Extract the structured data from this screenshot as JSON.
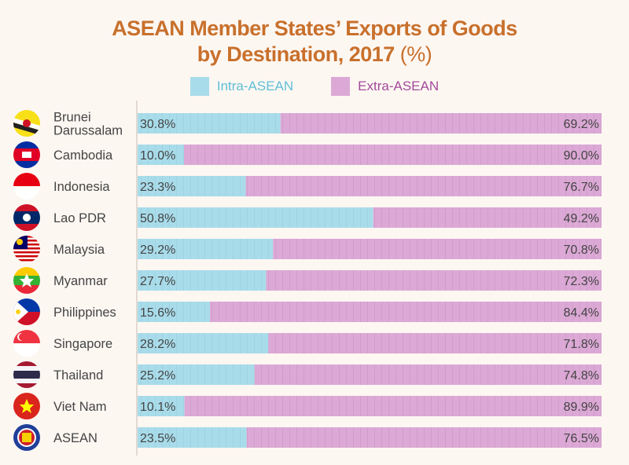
{
  "chart_data": {
    "type": "bar",
    "stacked": true,
    "orientation": "horizontal",
    "title": "ASEAN Member States’ Exports of Goods by Destination, 2017",
    "title_line1": "ASEAN Member States’ Exports of Goods",
    "title_line2": "by Destination, 2017",
    "title_unit": "(%)",
    "xlim": [
      0,
      100
    ],
    "legend_placement": "top",
    "categories": [
      "Brunei Darussalam",
      "Cambodia",
      "Indonesia",
      "Lao PDR",
      "Malaysia",
      "Myanmar",
      "Philippines",
      "Singapore",
      "Thailand",
      "Viet Nam",
      "ASEAN"
    ],
    "category_lines": [
      [
        "Brunei",
        "Darussalam"
      ],
      [
        "Cambodia"
      ],
      [
        "Indonesia"
      ],
      [
        "Lao PDR"
      ],
      [
        "Malaysia"
      ],
      [
        "Myanmar"
      ],
      [
        "Philippines"
      ],
      [
        "Singapore"
      ],
      [
        "Thailand"
      ],
      [
        "Viet Nam"
      ],
      [
        "ASEAN"
      ]
    ],
    "flags": [
      "brunei-flag",
      "cambodia-flag",
      "indonesia-flag",
      "laos-flag",
      "malaysia-flag",
      "myanmar-flag",
      "philippines-flag",
      "singapore-flag",
      "thailand-flag",
      "vietnam-flag",
      "asean-emblem"
    ],
    "series": [
      {
        "name": "Intra-ASEAN",
        "color": "#a9dcea",
        "values": [
          30.8,
          10.0,
          23.3,
          50.8,
          29.2,
          27.7,
          15.6,
          28.2,
          25.2,
          10.1,
          23.5
        ],
        "labels": [
          "30.8%",
          "10.0%",
          "23.3%",
          "50.8%",
          "29.2%",
          "27.7%",
          "15.6%",
          "28.2%",
          "25.2%",
          "10.1%",
          "23.5%"
        ]
      },
      {
        "name": "Extra-ASEAN",
        "color": "#dca9d6",
        "values": [
          69.2,
          90.0,
          76.7,
          49.2,
          70.8,
          72.3,
          84.4,
          71.8,
          74.8,
          89.9,
          76.5
        ],
        "labels": [
          "69.2%",
          "90.0%",
          "76.7%",
          "49.2%",
          "70.8%",
          "72.3%",
          "84.4%",
          "71.8%",
          "74.8%",
          "89.9%",
          "76.5%"
        ]
      }
    ]
  },
  "colors": {
    "title": "#c8702c",
    "intra_text": "#5fbfd6",
    "extra_text": "#a24a9a",
    "label": "#444444"
  }
}
